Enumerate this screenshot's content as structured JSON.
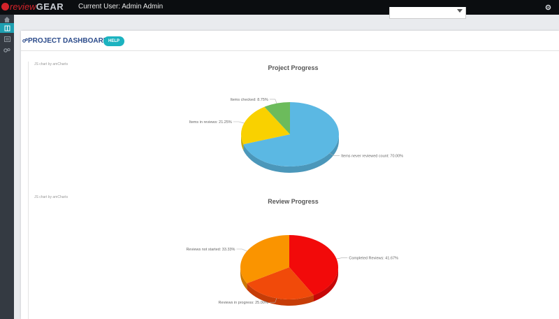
{
  "app": {
    "logo_prefix": "review",
    "logo_suffix": "GEAR",
    "current_user": "Current User: Admin Admin"
  },
  "dashboard": {
    "title": "PROJECT DASHBOARD",
    "help_label": "HELP"
  },
  "chart_data": [
    {
      "type": "pie",
      "title": "Project Progress",
      "credit": "JS chart by amCharts",
      "labels": [
        "Items never reviewed count",
        "Items in reviews",
        "Items checked"
      ],
      "values": [
        70.0,
        21.25,
        8.75
      ],
      "colors": [
        "#5bb8e3",
        "#f9d100",
        "#6cbb5c"
      ],
      "slice_labels": [
        "Items never reviewed count: 70.00%",
        "Items in reviews: 21.25%",
        "Items checked: 8.75%"
      ]
    },
    {
      "type": "pie",
      "title": "Review Progress",
      "credit": "JS chart by amCharts",
      "labels": [
        "Completed Reviews",
        "Reviews in progress",
        "Reviews not started"
      ],
      "values": [
        41.67,
        25.0,
        33.33
      ],
      "colors": [
        "#f20a0a",
        "#f14a0a",
        "#fa9400"
      ],
      "slice_labels": [
        "Completed Reviews: 41.67%",
        "Reviews in progress: 25.00%",
        "Reviews not started: 33.33%"
      ]
    }
  ]
}
